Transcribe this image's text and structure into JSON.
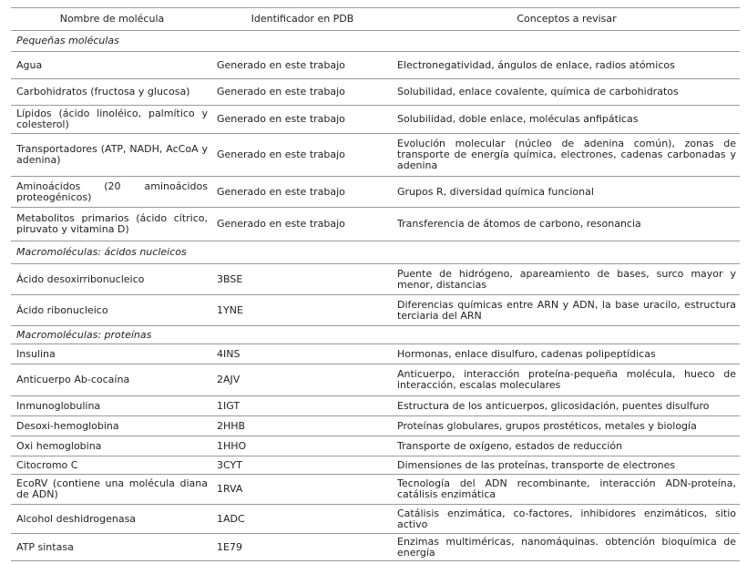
{
  "table": {
    "header": [
      "Nombre de molécula",
      "Identificador en PDB",
      "Conceptos a revisar"
    ],
    "sections": [
      {
        "title": "Pequeñas moléculas",
        "rows": [
          [
            "Agua",
            "Generado en este trabajo",
            "Electronegatividad, ángulos de enlace, radios atómicos"
          ],
          [
            "Carbohidratos (fructosa y glucosa)",
            "Generado en este trabajo",
            "Solubilidad, enlace covalente, química de carbohidratos"
          ],
          [
            "Lípidos (ácido linoléico, palmítico y colesterol)",
            "Generado en este trabajo",
            "Solubilidad, doble enlace, moléculas anfipáticas"
          ],
          [
            "Transportadores (ATP, NADH, AcCoA y adenina)",
            "Generado en este trabajo",
            "Evolución molecular (núcleo de adenina común), zonas de transporte de energía química, electrones, cadenas carbonadas y adenina"
          ],
          [
            "Aminoácidos (20 aminoácidos proteogénicos)",
            "Generado en este trabajo",
            "Grupos R, diversidad química funcional"
          ],
          [
            "Metabolitos primarios (ácido cítrico, piruvato y vitamina D)",
            "Generado en este trabajo",
            "Transferencia de átomos de carbono, resonancia"
          ]
        ]
      },
      {
        "title": "Macromoléculas: ácidos nucleicos",
        "rows": [
          [
            "Ácido desoxirribonucleico",
            "3BSE",
            "Puente de hidrógeno, apareamiento de bases, surco mayor y menor, distancias"
          ],
          [
            "Ácido ribonucleico",
            "1YNE",
            "Diferencias químicas entre ARN y ADN, la base uracilo, estructura terciaria del ARN"
          ]
        ]
      },
      {
        "title": "Macromoléculas: proteínas",
        "rows": [
          [
            "Insulina",
            "4INS",
            "Hormonas, enlace disulfuro, cadenas polipeptídicas"
          ],
          [
            "Anticuerpo Ab-cocaína",
            "2AJV",
            "Anticuerpo, interacción proteína-pequeña molécula, hueco de interacción, escalas moleculares"
          ],
          [
            "Inmunoglobulina",
            "1IGT",
            "Estructura de los anticuerpos, glicosidación, puentes disulfuro"
          ],
          [
            "Desoxi-hemoglobina",
            "2HHB",
            "Proteínas globulares, grupos prostéticos, metales y biología"
          ],
          [
            "Oxi hemoglobina",
            "1HHO",
            "Transporte de oxígeno, estados de reducción"
          ],
          [
            "Citocromo C",
            "3CYT",
            "Dimensiones de las proteínas, transporte de electrones"
          ],
          [
            "EcoRV (contiene una molécula diana de ADN)",
            "1RVA",
            "Tecnología del ADN recombinante, interacción ADN-proteína, catálisis enzimática"
          ],
          [
            "Alcohol deshidrogenasa",
            "1ADC",
            "Catálisis enzimática, co-factores, inhibidores enzimáticos, sitio activo"
          ],
          [
            "ATP sintasa",
            "1E79",
            "Enzimas multiméricas, nanomáquinas. obtención bioquímica de energía"
          ]
        ]
      }
    ]
  }
}
